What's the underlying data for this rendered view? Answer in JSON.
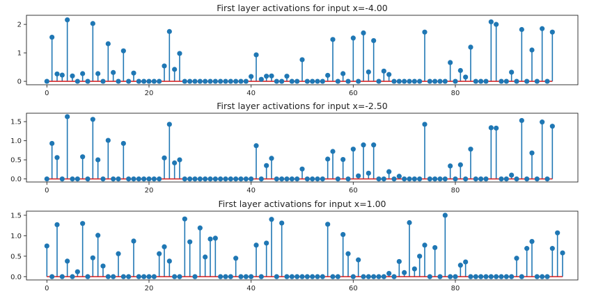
{
  "chart_data": [
    {
      "type": "stem",
      "title": "First layer activations for input x=-4.00",
      "xlim": [
        -4,
        104
      ],
      "ylim": [
        -0.12,
        2.32
      ],
      "xticks": [
        0,
        20,
        40,
        60,
        80
      ],
      "xtick_labels": [
        "0",
        "20",
        "40",
        "60",
        "80"
      ],
      "yticks": [
        0,
        1,
        2
      ],
      "ytick_labels": [
        "0",
        "1",
        "2"
      ],
      "values": [
        0,
        1.55,
        0.26,
        0.22,
        2.16,
        0.19,
        0,
        0.27,
        0,
        2.03,
        0.27,
        0,
        1.32,
        0.31,
        0,
        1.07,
        0,
        0.29,
        0,
        0,
        0,
        0,
        0,
        0.54,
        1.75,
        0.42,
        0.98,
        0,
        0,
        0,
        0,
        0,
        0,
        0,
        0,
        0,
        0,
        0,
        0,
        0,
        0.17,
        0.93,
        0.07,
        0.18,
        0.19,
        0,
        0,
        0.18,
        0,
        0,
        0.76,
        0,
        0,
        0,
        0,
        0.21,
        1.47,
        0,
        0.27,
        0,
        1.52,
        0,
        1.7,
        0.33,
        1.43,
        0,
        0.36,
        0.24,
        0,
        0,
        0,
        0,
        0,
        0,
        1.73,
        0,
        0,
        0,
        0,
        0.66,
        0,
        0.38,
        0.15,
        1.2,
        0,
        0,
        0,
        2.09,
        2.0,
        0,
        0,
        0.32,
        0,
        1.82,
        0,
        1.1,
        0,
        1.85,
        0,
        1.73
      ]
    },
    {
      "type": "stem",
      "title": "First layer activations for input x=-2.50",
      "xlim": [
        -4,
        104
      ],
      "ylim": [
        -0.08,
        1.72
      ],
      "xticks": [
        0,
        20,
        40,
        60,
        80
      ],
      "xtick_labels": [
        "0",
        "20",
        "40",
        "60",
        "80"
      ],
      "yticks": [
        0,
        0.5,
        1.0,
        1.5
      ],
      "ytick_labels": [
        "0.0",
        "0.5",
        "1.0",
        "1.5"
      ],
      "values": [
        0,
        0.93,
        0.56,
        0,
        1.63,
        0,
        0,
        0.58,
        0,
        1.56,
        0.5,
        0,
        1.01,
        0,
        0,
        0.93,
        0,
        0,
        0,
        0,
        0,
        0,
        0,
        0.55,
        1.43,
        0.42,
        0.5,
        0,
        0,
        0,
        0,
        0,
        0,
        0,
        0,
        0,
        0,
        0,
        0,
        0,
        0,
        0.87,
        0,
        0.35,
        0.54,
        0,
        0,
        0,
        0,
        0,
        0.26,
        0,
        0,
        0,
        0,
        0.52,
        0.72,
        0,
        0.51,
        0,
        0.78,
        0.08,
        0.89,
        0.15,
        0.89,
        0,
        0,
        0.19,
        0,
        0.07,
        0,
        0,
        0,
        0,
        1.43,
        0,
        0,
        0,
        0,
        0.34,
        0,
        0.37,
        0,
        0.78,
        0,
        0,
        0,
        1.34,
        1.33,
        0,
        0,
        0.1,
        0,
        1.53,
        0,
        0.68,
        0,
        1.49,
        0,
        1.38
      ]
    },
    {
      "type": "stem",
      "title": "First layer activations for input x=1.00",
      "xlim": [
        -4,
        104
      ],
      "ylim": [
        -0.08,
        1.6
      ],
      "xticks": [
        0,
        20,
        40,
        60,
        80
      ],
      "xtick_labels": [
        "0",
        "20",
        "40",
        "60",
        "80"
      ],
      "yticks": [
        0,
        0.5,
        1.0,
        1.5
      ],
      "ytick_labels": [
        "0.0",
        "0.5",
        "1.0",
        "1.5"
      ],
      "values": [
        0.75,
        0,
        1.27,
        0,
        0.38,
        0,
        0.12,
        1.3,
        0,
        0.46,
        1.01,
        0.26,
        0,
        0,
        0.56,
        0,
        0,
        0.87,
        0,
        0,
        0,
        0,
        0.56,
        0.73,
        0.38,
        0,
        0,
        1.41,
        0.85,
        0,
        1.19,
        0.48,
        0.92,
        0.94,
        0,
        0,
        0,
        0.45,
        0,
        0,
        0,
        0.77,
        0,
        0.82,
        1.4,
        0,
        1.31,
        0,
        0,
        0,
        0,
        0,
        0,
        0,
        0,
        1.28,
        0,
        0,
        1.03,
        0.56,
        0,
        0.41,
        0,
        0,
        0,
        0,
        0,
        0.08,
        0,
        0.37,
        0.1,
        1.32,
        0.19,
        0.5,
        0.77,
        0,
        0.71,
        0,
        1.5,
        0,
        0,
        0.28,
        0.36,
        0,
        0,
        0,
        0,
        0,
        0,
        0,
        0,
        0,
        0.45,
        0,
        0.69,
        0.86,
        0,
        0,
        0,
        0.69,
        1.07,
        0.58
      ]
    }
  ],
  "colors": {
    "stem": "#1f77b4",
    "baseline": "#d62728",
    "axes": "#222222"
  }
}
